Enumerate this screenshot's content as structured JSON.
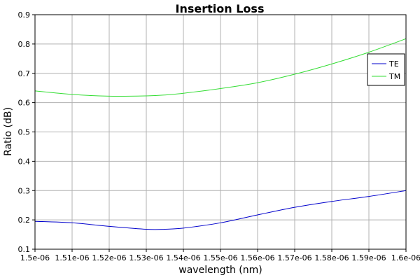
{
  "chart_data": {
    "type": "line",
    "title": "Insertion Loss",
    "xlabel": "wavelength (nm)",
    "ylabel": "Ratio (dB)",
    "xlim": [
      1.5e-06,
      1.6e-06
    ],
    "ylim": [
      0.1,
      0.9
    ],
    "grid": true,
    "legend_position": "top-right",
    "x_ticks": [
      {
        "value": 1.5e-06,
        "label": "1.5e-06"
      },
      {
        "value": 1.51e-06,
        "label": "1.51e-06"
      },
      {
        "value": 1.52e-06,
        "label": "1.52e-06"
      },
      {
        "value": 1.53e-06,
        "label": "1.53e-06"
      },
      {
        "value": 1.54e-06,
        "label": "1.54e-06"
      },
      {
        "value": 1.55e-06,
        "label": "1.55e-06"
      },
      {
        "value": 1.56e-06,
        "label": "1.56e-06"
      },
      {
        "value": 1.57e-06,
        "label": "1.57e-06"
      },
      {
        "value": 1.58e-06,
        "label": "1.58e-06"
      },
      {
        "value": 1.59e-06,
        "label": "1.59e-06"
      },
      {
        "value": 1.6e-06,
        "label": "1.6e-06"
      }
    ],
    "y_ticks": [
      {
        "value": 0.1,
        "label": "0.1"
      },
      {
        "value": 0.2,
        "label": "0.2"
      },
      {
        "value": 0.3,
        "label": "0.3"
      },
      {
        "value": 0.4,
        "label": "0.4"
      },
      {
        "value": 0.5,
        "label": "0.5"
      },
      {
        "value": 0.6,
        "label": "0.6"
      },
      {
        "value": 0.7,
        "label": "0.7"
      },
      {
        "value": 0.8,
        "label": "0.8"
      },
      {
        "value": 0.9,
        "label": "0.9"
      }
    ],
    "x": [
      1.5e-06,
      1.51e-06,
      1.52e-06,
      1.53e-06,
      1.535e-06,
      1.54e-06,
      1.55e-06,
      1.56e-06,
      1.57e-06,
      1.58e-06,
      1.59e-06,
      1.6e-06
    ],
    "series": [
      {
        "name": "TE",
        "color": "#0000cc",
        "values": [
          0.195,
          0.19,
          0.178,
          0.168,
          0.168,
          0.172,
          0.19,
          0.217,
          0.243,
          0.263,
          0.28,
          0.3
        ]
      },
      {
        "name": "TM",
        "color": "#33dd33",
        "values": [
          0.64,
          0.628,
          0.622,
          0.623,
          0.626,
          0.632,
          0.648,
          0.668,
          0.697,
          0.732,
          0.772,
          0.818
        ]
      }
    ]
  }
}
